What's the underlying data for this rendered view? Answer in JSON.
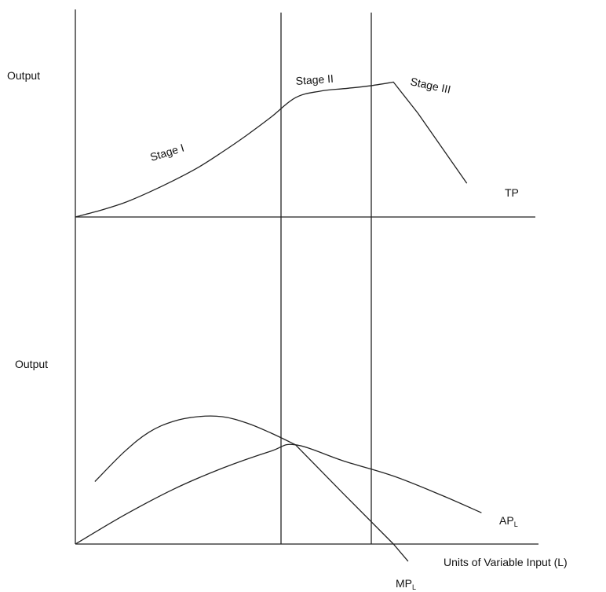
{
  "chart_data": [
    {
      "type": "line",
      "panel": "top",
      "ylabel": "Output",
      "series": [
        {
          "name": "TP",
          "x": [
            0,
            0.5,
            1.0,
            1.5,
            2.0,
            2.5,
            3.0,
            3.5,
            4.0,
            4.5,
            5.0,
            5.5,
            6.0,
            6.5,
            7.0,
            8.0
          ],
          "y": [
            0,
            0.05,
            0.11,
            0.19,
            0.28,
            0.38,
            0.5,
            0.63,
            0.77,
            0.92,
            0.97,
            0.99,
            1.01,
            1.04,
            0.8,
            0.26
          ]
        }
      ],
      "xlim": [
        0,
        9.4
      ],
      "ylim": [
        0,
        1.6
      ],
      "annotations": [
        "Stage I",
        "Stage II",
        "Stage III"
      ],
      "stage_boundaries": [
        4.5,
        6.5
      ],
      "grid": false
    },
    {
      "type": "line",
      "panel": "bottom",
      "ylabel": "Output",
      "xlabel": "Units of Variable Input (L)",
      "series": [
        {
          "name": "AP",
          "name_sub": "L",
          "x": [
            0,
            1.0,
            2.0,
            3.0,
            4.0,
            4.5,
            5.5,
            6.5,
            7.5,
            8.3
          ],
          "y": [
            0,
            0.37,
            0.7,
            0.97,
            1.19,
            1.27,
            1.06,
            0.87,
            0.62,
            0.4
          ]
        },
        {
          "name": "MP",
          "name_sub": "L",
          "x": [
            0.4,
            1.0,
            1.5,
            2.0,
            2.5,
            3.0,
            3.5,
            4.0,
            4.5,
            5.5,
            6.5,
            6.8
          ],
          "y": [
            0.8,
            1.18,
            1.43,
            1.57,
            1.63,
            1.63,
            1.55,
            1.42,
            1.27,
            0.63,
            0.0,
            -0.22
          ]
        }
      ],
      "xlim": [
        0,
        9.4
      ],
      "ylim": [
        -0.6,
        3.6
      ],
      "stage_boundaries": [
        4.5,
        6.5
      ],
      "grid": false
    }
  ]
}
